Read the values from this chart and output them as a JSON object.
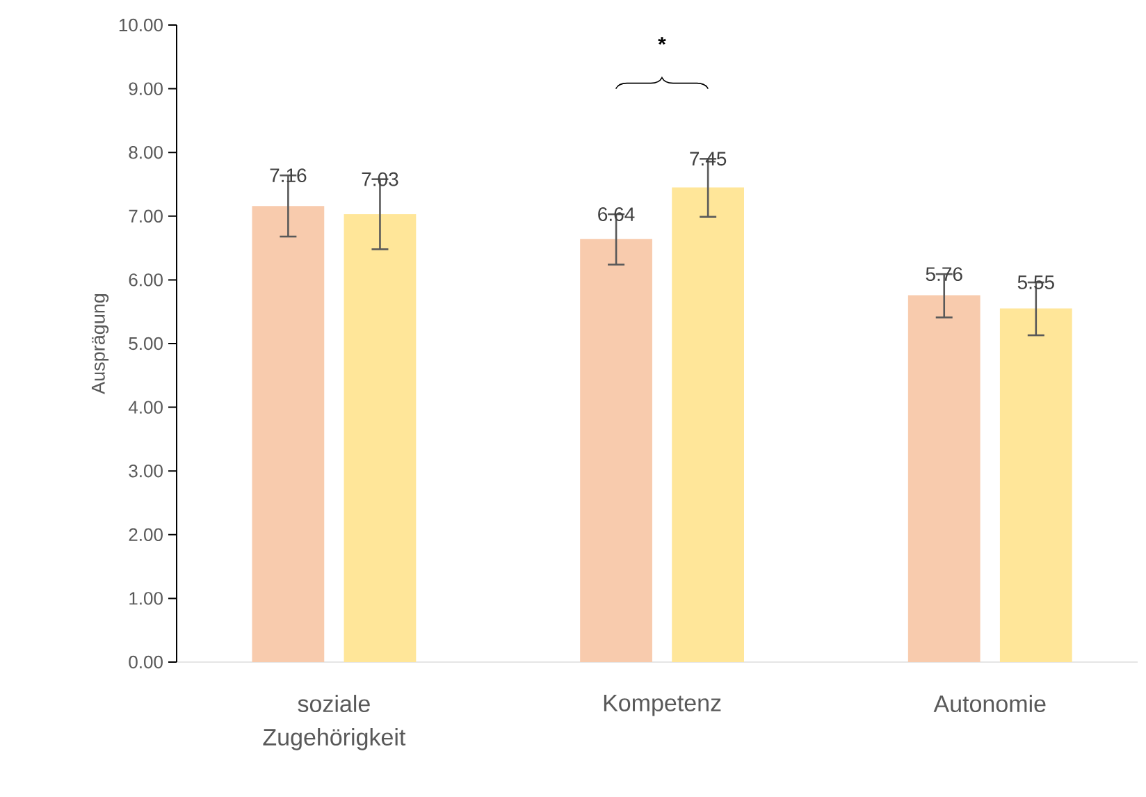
{
  "chart_data": {
    "type": "bar",
    "ylabel": "Ausprägung",
    "categories": [
      "soziale Zugehörigkeit",
      "Kompetenz",
      "Autonomie"
    ],
    "series": [
      {
        "color": "#f8cbad",
        "values": [
          7.16,
          6.64,
          5.76
        ],
        "errors": [
          [
            6.68,
            7.64
          ],
          [
            6.24,
            7.03
          ],
          [
            5.41,
            6.09
          ]
        ]
      },
      {
        "color": "#ffe699",
        "values": [
          7.03,
          7.45,
          5.55
        ],
        "errors": [
          [
            6.48,
            7.58
          ],
          [
            6.99,
            7.9
          ],
          [
            5.13,
            5.96
          ]
        ]
      }
    ],
    "ylim": [
      0,
      10
    ],
    "yticks": [
      {
        "value": 0,
        "label": "0.00"
      },
      {
        "value": 1,
        "label": "1.00"
      },
      {
        "value": 2,
        "label": "2.00"
      },
      {
        "value": 3,
        "label": "3.00"
      },
      {
        "value": 4,
        "label": "4.00"
      },
      {
        "value": 5,
        "label": "5.00"
      },
      {
        "value": 6,
        "label": "6.00"
      },
      {
        "value": 7,
        "label": "7.00"
      },
      {
        "value": 8,
        "label": "8.00"
      },
      {
        "value": 9,
        "label": "9.00"
      },
      {
        "value": 10,
        "label": "10.00"
      }
    ],
    "data_labels": true,
    "grid": false,
    "annotations": [
      "*"
    ]
  }
}
